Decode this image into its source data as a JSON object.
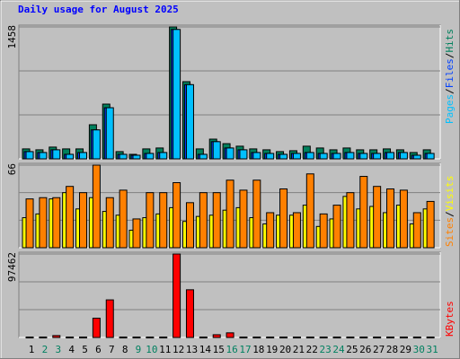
{
  "chart_data": [
    {
      "type": "bar",
      "title": "Daily usage for August 2025",
      "ylim": [
        0,
        1458
      ],
      "yticks": [
        1458
      ],
      "grid": true,
      "legend_separator": "/",
      "series": [
        {
          "name": "Hits",
          "color": "#00805c",
          "values": [
            110,
            100,
            130,
            110,
            110,
            377,
            605,
            80,
            50,
            110,
            120,
            1458,
            853,
            110,
            218,
            168,
            140,
            110,
            100,
            80,
            90,
            140,
            120,
            100,
            120,
            100,
            100,
            110,
            100,
            70,
            100
          ]
        },
        {
          "name": "Files",
          "color": "#0040ff",
          "values": [
            80,
            70,
            100,
            50,
            70,
            320,
            565,
            50,
            40,
            60,
            70,
            1430,
            820,
            50,
            190,
            120,
            100,
            70,
            60,
            50,
            60,
            70,
            60,
            60,
            70,
            60,
            60,
            70,
            70,
            40,
            60
          ]
        },
        {
          "name": "Pages",
          "color": "#00c0ff",
          "values": [
            80,
            70,
            100,
            50,
            70,
            320,
            565,
            50,
            40,
            60,
            70,
            1430,
            820,
            50,
            190,
            120,
            100,
            70,
            60,
            50,
            60,
            70,
            60,
            60,
            70,
            60,
            60,
            70,
            70,
            40,
            60
          ]
        }
      ]
    },
    {
      "type": "bar",
      "ylim": [
        0,
        66
      ],
      "yticks": [
        66
      ],
      "grid": true,
      "legend_separator": "/",
      "series": [
        {
          "name": "Visits",
          "color": "#ffff00",
          "values": [
            24,
            27,
            39,
            44,
            31,
            40,
            29,
            26,
            14,
            24,
            27,
            32,
            21,
            25,
            26,
            30,
            32,
            24,
            19,
            26,
            26,
            34,
            17,
            23,
            41,
            31,
            33,
            28,
            34,
            19,
            31
          ]
        },
        {
          "name": "Sites",
          "color": "#ff8000",
          "values": [
            39,
            40,
            40,
            49,
            44,
            66,
            40,
            46,
            23,
            44,
            44,
            52,
            36,
            44,
            44,
            54,
            46,
            54,
            28,
            47,
            28,
            59,
            27,
            34,
            44,
            57,
            49,
            47,
            46,
            28,
            37
          ]
        }
      ]
    },
    {
      "type": "bar",
      "ylim": [
        0,
        97462
      ],
      "yticks": [
        97462
      ],
      "grid": true,
      "categories": [
        "1",
        "2",
        "3",
        "4",
        "5",
        "6",
        "7",
        "8",
        "9",
        "10",
        "11",
        "12",
        "13",
        "14",
        "15",
        "16",
        "17",
        "18",
        "19",
        "20",
        "21",
        "22",
        "23",
        "24",
        "25",
        "26",
        "27",
        "28",
        "29",
        "30",
        "31"
      ],
      "highlighted_categories": [
        "2",
        "3",
        "9",
        "10",
        "16",
        "17",
        "23",
        "24",
        "30",
        "31"
      ],
      "highlight_color": "#008060",
      "series": [
        {
          "name": "KBytes",
          "color": "#ff0000",
          "values": [
            500,
            500,
            2200,
            500,
            500,
            22500,
            43900,
            500,
            500,
            500,
            500,
            97462,
            55700,
            500,
            3200,
            5400,
            500,
            500,
            500,
            500,
            500,
            500,
            500,
            500,
            500,
            500,
            500,
            500,
            500,
            500,
            500
          ]
        }
      ]
    }
  ]
}
